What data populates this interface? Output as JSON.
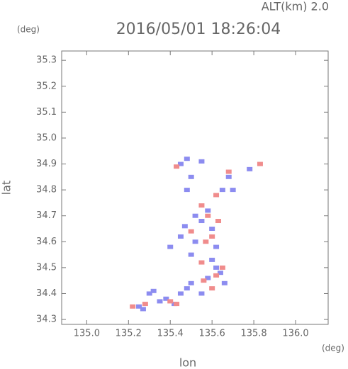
{
  "chart_data": {
    "type": "scatter",
    "title": "2016/05/01 18:26:04",
    "subtitle": "ALT(km) 2.0",
    "y_unit": "(deg)",
    "x_unit": "(deg)",
    "x_label": "lon",
    "y_label": "lat",
    "xlim": [
      134.88,
      136.156
    ],
    "ylim": [
      34.281,
      35.336
    ],
    "xticks": [
      {
        "value": 135.0,
        "label": "135.0"
      },
      135.2,
      135.4,
      135.6,
      135.8,
      {
        "value": 136.0,
        "label": "136.0"
      }
    ],
    "yticks": [
      34.3,
      34.4,
      34.5,
      34.6,
      34.7,
      34.8,
      34.9,
      {
        "value": 35.0,
        "label": "35.0"
      },
      35.1,
      35.2,
      35.3
    ],
    "grid": false,
    "series": [
      {
        "color": "#8c8cf0",
        "x": [
          135.25,
          135.27,
          135.3,
          135.32,
          135.35,
          135.38,
          135.42,
          135.45,
          135.48,
          135.5,
          135.55,
          135.58,
          135.62,
          135.64,
          135.5,
          135.52,
          135.45,
          135.47,
          135.52,
          135.55,
          135.6,
          135.62,
          135.58,
          135.65,
          135.68,
          135.7,
          135.48,
          135.5,
          135.45,
          135.48,
          135.55,
          135.78,
          135.4,
          135.6,
          135.66
        ],
        "values": [
          34.35,
          34.34,
          34.4,
          34.41,
          34.37,
          34.38,
          34.36,
          34.4,
          34.42,
          34.44,
          34.4,
          34.46,
          34.5,
          34.48,
          34.55,
          34.6,
          34.62,
          34.66,
          34.7,
          34.68,
          34.65,
          34.58,
          34.72,
          34.8,
          34.85,
          34.8,
          34.8,
          34.85,
          34.9,
          34.92,
          34.91,
          34.88,
          34.58,
          34.53,
          34.44
        ]
      },
      {
        "color": "#f08c8c",
        "x": [
          135.22,
          135.4,
          135.43,
          135.56,
          135.6,
          135.62,
          135.55,
          135.57,
          135.6,
          135.63,
          135.55,
          135.5,
          135.58,
          135.43,
          135.62,
          135.68,
          135.83,
          135.65,
          135.28
        ],
        "values": [
          34.35,
          34.37,
          34.36,
          34.45,
          34.42,
          34.47,
          34.52,
          34.6,
          34.62,
          34.68,
          34.74,
          34.64,
          34.7,
          34.89,
          34.78,
          34.87,
          34.9,
          34.5,
          34.36
        ]
      }
    ]
  }
}
